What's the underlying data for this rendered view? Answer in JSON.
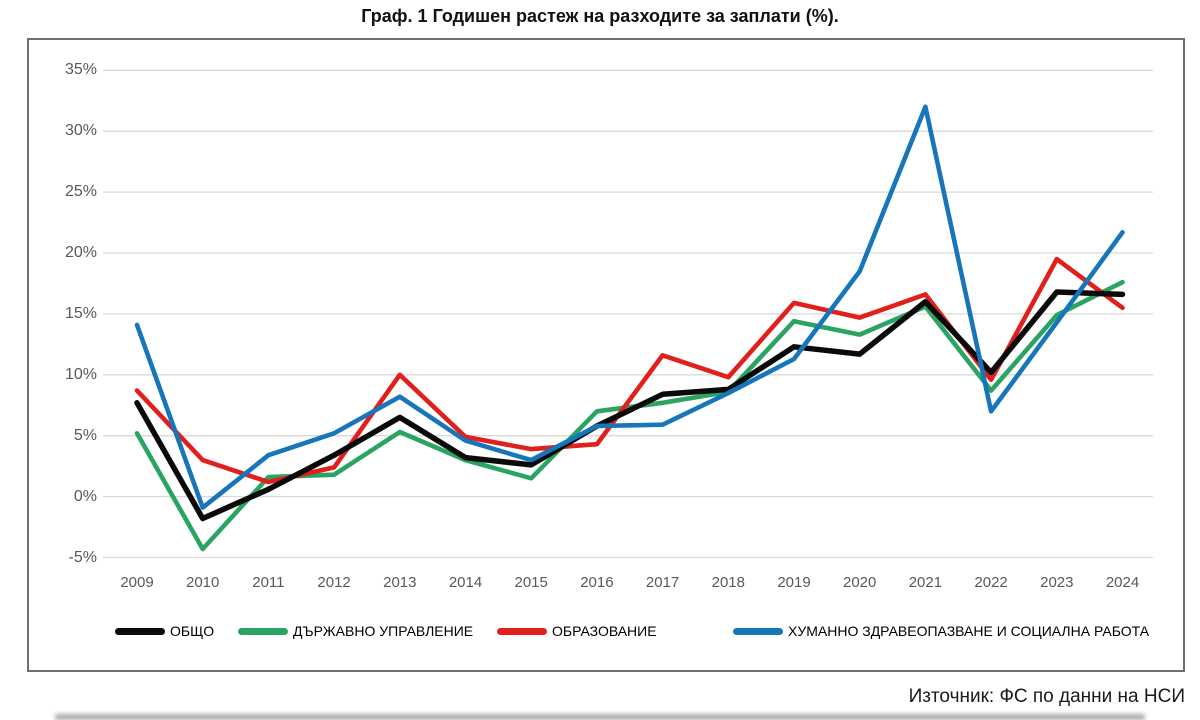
{
  "title": "Граф. 1 Годишен растеж на разходите за заплати (%).",
  "source": "Източник: ФС по данни на НСИ",
  "chart_data": {
    "type": "line",
    "x": [
      2009,
      2010,
      2011,
      2012,
      2013,
      2014,
      2015,
      2016,
      2017,
      2018,
      2019,
      2020,
      2021,
      2022,
      2023,
      2024
    ],
    "x_labels": [
      "2009",
      "2010",
      "2011",
      "2012",
      "2013",
      "2014",
      "2015",
      "2016",
      "2017",
      "2018",
      "2019",
      "2020",
      "2021",
      "2022",
      "2023",
      "2024"
    ],
    "series": [
      {
        "name": "ОБЩО",
        "color": "#0a0a0a",
        "values": [
          7.7,
          -1.8,
          0.6,
          3.4,
          6.5,
          3.2,
          2.6,
          5.8,
          8.4,
          8.8,
          12.3,
          11.7,
          16.0,
          10.2,
          16.8,
          16.6
        ]
      },
      {
        "name": "ДЪРЖАВНО УПРАВЛЕНИЕ",
        "color": "#2aa463",
        "values": [
          5.2,
          -4.3,
          1.6,
          1.8,
          5.3,
          3.0,
          1.5,
          7.0,
          7.7,
          8.6,
          14.4,
          13.3,
          15.6,
          8.7,
          14.9,
          17.6
        ]
      },
      {
        "name": "ОБРАЗОВАНИЕ",
        "color": "#e0201c",
        "values": [
          8.7,
          3.0,
          1.2,
          2.4,
          10.0,
          4.9,
          3.9,
          4.3,
          11.6,
          9.8,
          15.9,
          14.7,
          16.6,
          9.6,
          19.5,
          15.5
        ]
      },
      {
        "name": "ХУМАННО ЗДРАВЕОПАЗВАНЕ И СОЦИАЛНА РАБОТА",
        "color": "#1776ba",
        "values": [
          14.1,
          -0.9,
          3.4,
          5.2,
          8.2,
          4.6,
          3.0,
          5.8,
          5.9,
          8.5,
          11.3,
          18.5,
          32.0,
          7.0,
          14.3,
          21.7
        ]
      }
    ],
    "ylim": [
      -5,
      35
    ],
    "ytick_step": 5,
    "ytick_labels": [
      "35%",
      "30%",
      "25%",
      "20%",
      "15%",
      "10%",
      "5%",
      "0%",
      "-5%"
    ],
    "grid": true,
    "legend_position": "bottom",
    "grid_color": "#d9d9d9",
    "axis_text_color": "#595959"
  }
}
